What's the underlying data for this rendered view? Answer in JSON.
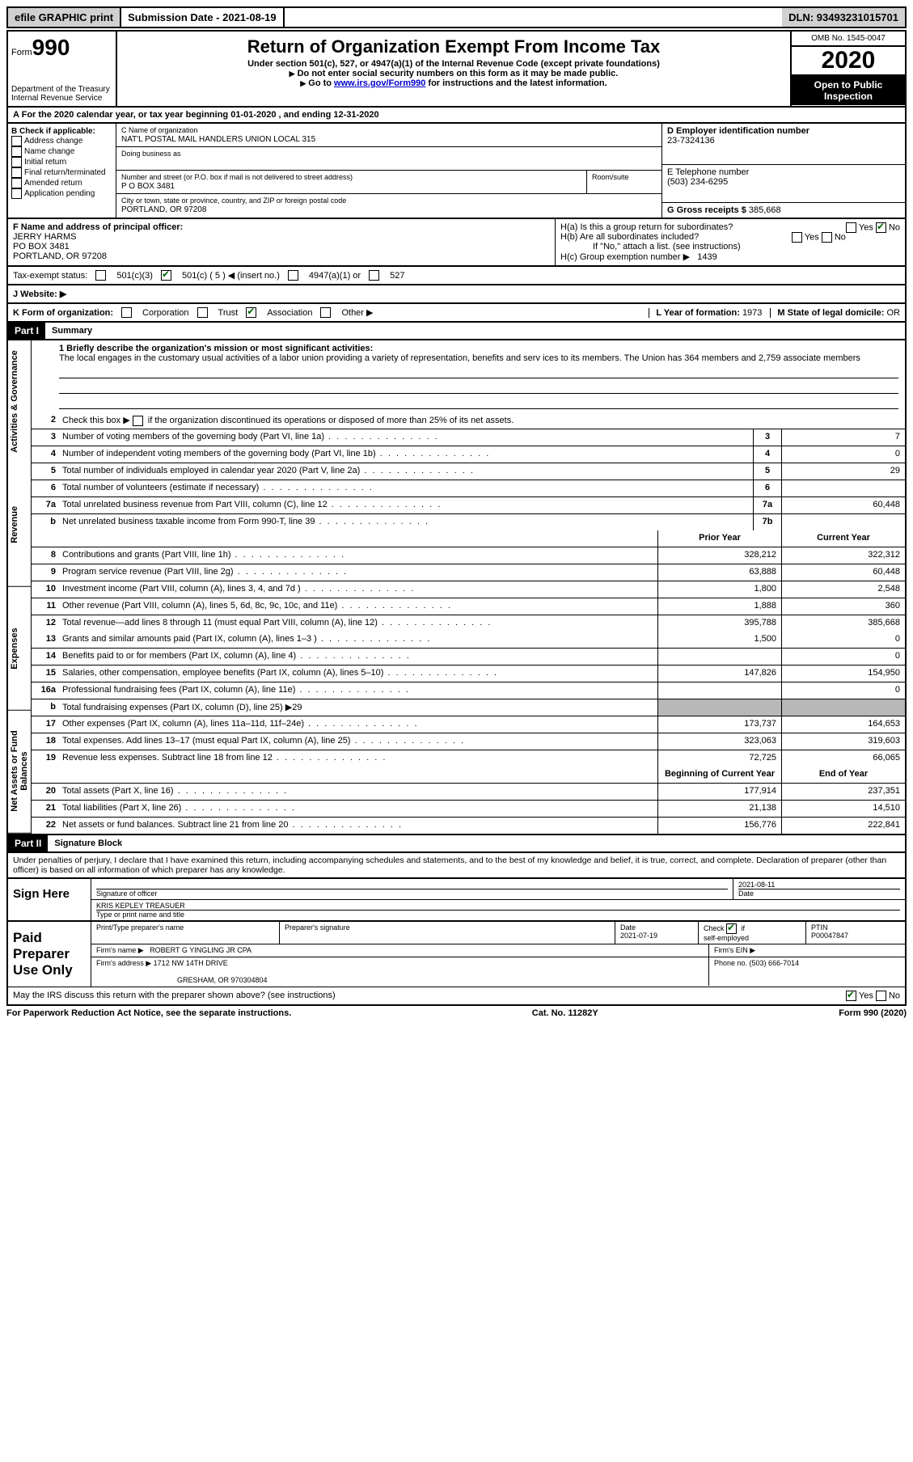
{
  "topbar": {
    "efile": "efile GRAPHIC print",
    "subdate_label": "Submission Date - ",
    "subdate": "2021-08-19",
    "dln_label": "DLN: ",
    "dln": "93493231015701"
  },
  "header": {
    "form_prefix": "Form",
    "form_no": "990",
    "dept": "Department of the Treasury\nInternal Revenue Service",
    "title": "Return of Organization Exempt From Income Tax",
    "sub1": "Under section 501(c), 527, or 4947(a)(1) of the Internal Revenue Code (except private foundations)",
    "sub2": "Do not enter social security numbers on this form as it may be made public.",
    "sub3_pre": "Go to ",
    "sub3_link": "www.irs.gov/Form990",
    "sub3_post": " for instructions and the latest information.",
    "omb": "OMB No. 1545-0047",
    "year": "2020",
    "open": "Open to Public Inspection"
  },
  "rowA": "For the 2020 calendar year, or tax year beginning 01-01-2020    , and ending 12-31-2020",
  "boxB": {
    "heading": "B Check if applicable:",
    "opts": [
      "Address change",
      "Name change",
      "Initial return",
      "Final return/terminated",
      "Amended return",
      "Application pending"
    ]
  },
  "boxC": {
    "name_label": "C Name of organization",
    "name": "NAT'L POSTAL MAIL HANDLERS UNION LOCAL 315",
    "dba_label": "Doing business as",
    "addr_label": "Number and street (or P.O. box if mail is not delivered to street address)",
    "room_label": "Room/suite",
    "addr": "P O BOX 3481",
    "city_label": "City or town, state or province, country, and ZIP or foreign postal code",
    "city": "PORTLAND, OR  97208"
  },
  "boxD": {
    "label": "D Employer identification number",
    "val": "23-7324136"
  },
  "boxE": {
    "label": "E Telephone number",
    "val": "(503) 234-6295"
  },
  "boxG": {
    "label": "G Gross receipts $ ",
    "val": "385,668"
  },
  "boxF": {
    "label": "F  Name and address of principal officer:",
    "name": "JERRY HARMS",
    "addr1": "PO BOX 3481",
    "addr2": "PORTLAND, OR  97208"
  },
  "boxH": {
    "a": "H(a)  Is this a group return for subordinates?",
    "b": "H(b)  Are all subordinates included?",
    "b_note": "If \"No,\" attach a list. (see instructions)",
    "c": "H(c)  Group exemption number ▶",
    "c_val": "1439"
  },
  "rowI_label": "Tax-exempt status:",
  "rowI_opts": {
    "a": "501(c)(3)",
    "b": "501(c) ( 5 ) ◀ (insert no.)",
    "c": "4947(a)(1) or",
    "d": "527"
  },
  "rowJ": "J   Website: ▶",
  "rowK": {
    "label": "K Form of organization:",
    "opts": [
      "Corporation",
      "Trust",
      "Association",
      "Other ▶"
    ],
    "L_label": "L Year of formation: ",
    "L_val": "1973",
    "M_label": "M State of legal domicile: ",
    "M_val": "OR"
  },
  "part1": {
    "label": "Part I",
    "title": "Summary",
    "line1_label": "1  Briefly describe the organization's mission or most significant activities:",
    "line1_text": "The local engages in the customary usual activities of a labor union providing a variety of representation, benefits and serv ices to its members. The Union has 364 members and 2,759 associate members",
    "line2": "Check this box ▶       if the organization discontinued its operations or disposed of more than 25% of its net assets.",
    "tabs": [
      "Activities & Governance",
      "Revenue",
      "Expenses",
      "Net Assets or Fund Balances"
    ],
    "prior_label": "Prior Year",
    "current_label": "Current Year",
    "begin_label": "Beginning of Current Year",
    "end_label": "End of Year",
    "rows": [
      {
        "n": "3",
        "l": "Number of voting members of the governing body (Part VI, line 1a)",
        "box": "3",
        "v2": "7"
      },
      {
        "n": "4",
        "l": "Number of independent voting members of the governing body (Part VI, line 1b)",
        "box": "4",
        "v2": "0"
      },
      {
        "n": "5",
        "l": "Total number of individuals employed in calendar year 2020 (Part V, line 2a)",
        "box": "5",
        "v2": "29"
      },
      {
        "n": "6",
        "l": "Total number of volunteers (estimate if necessary)",
        "box": "6",
        "v2": ""
      },
      {
        "n": "7a",
        "l": "Total unrelated business revenue from Part VIII, column (C), line 12",
        "box": "7a",
        "v2": "60,448"
      },
      {
        "n": "b",
        "l": "Net unrelated business taxable income from Form 990-T, line 39",
        "box": "7b",
        "v2": ""
      }
    ],
    "rows2": [
      {
        "n": "8",
        "l": "Contributions and grants (Part VIII, line 1h)",
        "v1": "328,212",
        "v2": "322,312"
      },
      {
        "n": "9",
        "l": "Program service revenue (Part VIII, line 2g)",
        "v1": "63,888",
        "v2": "60,448"
      },
      {
        "n": "10",
        "l": "Investment income (Part VIII, column (A), lines 3, 4, and 7d )",
        "v1": "1,800",
        "v2": "2,548"
      },
      {
        "n": "11",
        "l": "Other revenue (Part VIII, column (A), lines 5, 6d, 8c, 9c, 10c, and 11e)",
        "v1": "1,888",
        "v2": "360"
      },
      {
        "n": "12",
        "l": "Total revenue—add lines 8 through 11 (must equal Part VIII, column (A), line 12)",
        "v1": "395,788",
        "v2": "385,668"
      }
    ],
    "rows3": [
      {
        "n": "13",
        "l": "Grants and similar amounts paid (Part IX, column (A), lines 1–3 )",
        "v1": "1,500",
        "v2": "0"
      },
      {
        "n": "14",
        "l": "Benefits paid to or for members (Part IX, column (A), line 4)",
        "v1": "",
        "v2": "0"
      },
      {
        "n": "15",
        "l": "Salaries, other compensation, employee benefits (Part IX, column (A), lines 5–10)",
        "v1": "147,826",
        "v2": "154,950"
      },
      {
        "n": "16a",
        "l": "Professional fundraising fees (Part IX, column (A), line 11e)",
        "v1": "",
        "v2": "0"
      },
      {
        "n": "b",
        "l": "Total fundraising expenses (Part IX, column (D), line 25) ▶29",
        "grey": true
      },
      {
        "n": "17",
        "l": "Other expenses (Part IX, column (A), lines 11a–11d, 11f–24e)",
        "v1": "173,737",
        "v2": "164,653"
      },
      {
        "n": "18",
        "l": "Total expenses. Add lines 13–17 (must equal Part IX, column (A), line 25)",
        "v1": "323,063",
        "v2": "319,603"
      },
      {
        "n": "19",
        "l": "Revenue less expenses. Subtract line 18 from line 12",
        "v1": "72,725",
        "v2": "66,065"
      }
    ],
    "rows4": [
      {
        "n": "20",
        "l": "Total assets (Part X, line 16)",
        "v1": "177,914",
        "v2": "237,351"
      },
      {
        "n": "21",
        "l": "Total liabilities (Part X, line 26)",
        "v1": "21,138",
        "v2": "14,510"
      },
      {
        "n": "22",
        "l": "Net assets or fund balances. Subtract line 21 from line 20",
        "v1": "156,776",
        "v2": "222,841"
      }
    ]
  },
  "part2": {
    "label": "Part II",
    "title": "Signature Block",
    "decl": "Under penalties of perjury, I declare that I have examined this return, including accompanying schedules and statements, and to the best of my knowledge and belief, it is true, correct, and complete. Declaration of preparer (other than officer) is based on all information of which preparer has any knowledge.",
    "sign_here": "Sign Here",
    "sig_officer": "Signature of officer",
    "sig_date": "2021-08-11",
    "date_label": "Date",
    "officer_name": "KRIS KEPLEY TREASUER",
    "officer_type_label": "Type or print name and title",
    "paid": "Paid Preparer Use Only",
    "prep_name_label": "Print/Type preparer's name",
    "prep_sig_label": "Preparer's signature",
    "prep_date": "2021-07-19",
    "check_label": "Check         if self-employed",
    "ptin_label": "PTIN",
    "ptin": "P00047847",
    "firm_name_label": "Firm's name    ▶",
    "firm_name": "ROBERT G YINGLING JR CPA",
    "firm_ein_label": "Firm's EIN ▶",
    "firm_addr_label": "Firm's address ▶",
    "firm_addr1": "1712 NW 14TH DRIVE",
    "firm_addr2": "GRESHAM, OR  970304804",
    "firm_phone_label": "Phone no. ",
    "firm_phone": "(503) 666-7014",
    "discuss": "May the IRS discuss this return with the preparer shown above? (see instructions)"
  },
  "footer": {
    "left": "For Paperwork Reduction Act Notice, see the separate instructions.",
    "mid": "Cat. No. 11282Y",
    "right": "Form 990 (2020)"
  }
}
